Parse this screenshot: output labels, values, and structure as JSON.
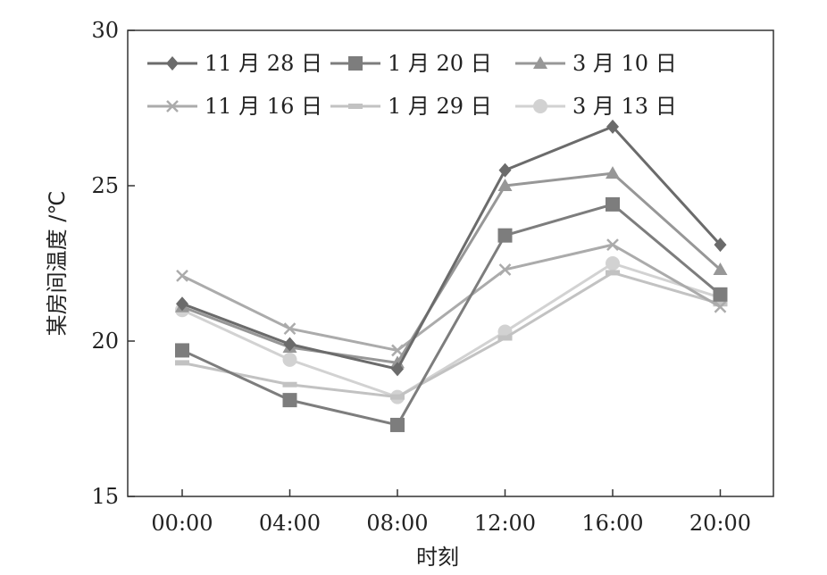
{
  "chart_data": {
    "type": "line",
    "title": "",
    "xlabel": "时刻",
    "ylabel": "某房间温度 /℃",
    "categories": [
      "00:00",
      "04:00",
      "08:00",
      "12:00",
      "16:00",
      "20:00"
    ],
    "ylim": [
      15,
      30
    ],
    "yticks": [
      15,
      20,
      25,
      30
    ],
    "grid": false,
    "legend_position": "top",
    "series": [
      {
        "name": "11 月 28 日",
        "marker": "diamond",
        "color": "#6b6b6b",
        "values": [
          21.2,
          19.9,
          19.1,
          25.5,
          26.9,
          23.1
        ]
      },
      {
        "name": "1 月 20 日",
        "marker": "square",
        "color": "#7d7d7d",
        "values": [
          19.7,
          18.1,
          17.3,
          23.4,
          24.4,
          21.5
        ]
      },
      {
        "name": "3 月 10 日",
        "marker": "triangle",
        "color": "#979797",
        "values": [
          21.1,
          19.8,
          19.3,
          25.0,
          25.4,
          22.3
        ]
      },
      {
        "name": "11 月 16 日",
        "marker": "x",
        "color": "#ababab",
        "values": [
          22.1,
          20.4,
          19.7,
          22.3,
          23.1,
          21.1
        ]
      },
      {
        "name": "1 月 29 日",
        "marker": "dash",
        "color": "#c2c2c2",
        "values": [
          19.3,
          18.6,
          18.2,
          20.1,
          22.2,
          21.2
        ]
      },
      {
        "name": "3 月 13 日",
        "marker": "circle",
        "color": "#d2d2d2",
        "values": [
          21.0,
          19.4,
          18.2,
          20.3,
          22.5,
          21.4
        ]
      }
    ]
  }
}
